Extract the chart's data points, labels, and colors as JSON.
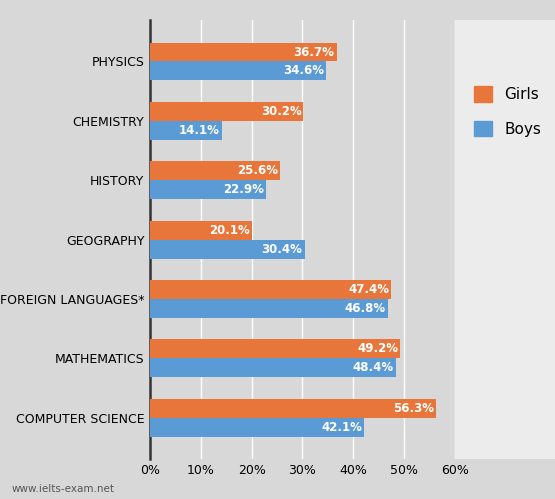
{
  "categories": [
    "COMPUTER SCIENCE",
    "MATHEMATICS",
    "FOREIGN LANGUAGES*",
    "GEOGRAPHY",
    "HISTORY",
    "CHEMISTRY",
    "PHYSICS"
  ],
  "girls_values": [
    56.3,
    49.2,
    47.4,
    20.1,
    25.6,
    30.2,
    36.7
  ],
  "boys_values": [
    42.1,
    48.4,
    46.8,
    30.4,
    22.9,
    14.1,
    34.6
  ],
  "girls_color": "#E8763A",
  "boys_color": "#5B9BD5",
  "background_color": "#D8D8D8",
  "legend_bg_color": "#ECECEC",
  "title": "",
  "xlim": [
    0,
    60
  ],
  "xticks": [
    0,
    10,
    20,
    30,
    40,
    50,
    60
  ],
  "xtick_labels": [
    "0%",
    "10%",
    "20%",
    "30%",
    "40%",
    "50%",
    "60%"
  ],
  "bar_height": 0.32,
  "label_fontsize": 8.5,
  "tick_fontsize": 9,
  "legend_girls": "Girls",
  "legend_boys": "Boys",
  "legend_fontsize": 11,
  "watermark": "www.ielts-exam.net"
}
